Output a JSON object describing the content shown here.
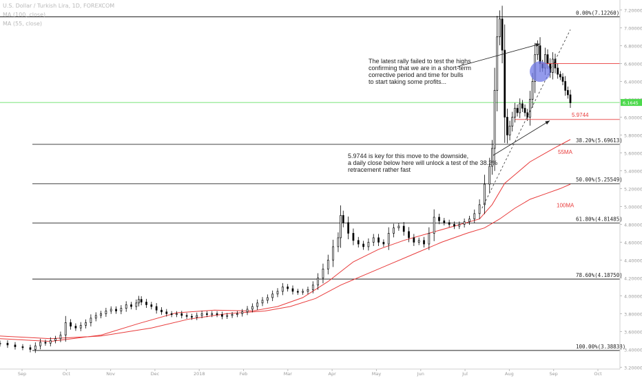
{
  "header": {
    "symbol": "U.S. Dollar / Turkish Lira, 1D, FOREXCOM",
    "indicator_1": "MA (100, close)",
    "indicator_2": "MA (55, close)"
  },
  "annotations": {
    "top_note": [
      "The latest rally failed to test the highs",
      "confirming that we are in a short-term",
      "corrective period and time for bulls",
      "to start taking some profits..."
    ],
    "bottom_note": [
      "5.9744 is key for this move to the downside,",
      "a daily close below here will unlock a test of the 38.2%",
      "retracement rather fast"
    ]
  },
  "colors": {
    "candle": "#000000",
    "ma": "#e83a3a",
    "fib_line": "#000000",
    "current_price": "#4cd94c",
    "circle": "#6f78e6"
  },
  "chart_data": {
    "type": "candlestick",
    "x_ticks": [
      "Sep",
      "Oct",
      "Nov",
      "Dec",
      "2018",
      "Feb",
      "Mar",
      "Apr",
      "May",
      "Jun",
      "Jul",
      "Aug",
      "Sep",
      "Oct"
    ],
    "y_ticks": [
      "3.20000",
      "3.40000",
      "3.60000",
      "3.80000",
      "4.00000",
      "4.20000",
      "4.40000",
      "4.60000",
      "4.80000",
      "5.00000",
      "5.20000",
      "5.40000",
      "5.60000",
      "5.80000",
      "6.00000",
      "6.20000",
      "6.40000",
      "6.60000",
      "6.80000",
      "7.00000",
      "7.20000"
    ],
    "ylim": [
      3.18,
      7.25
    ],
    "current_price": "6.1645",
    "fib_levels": [
      {
        "label": "0.00%(7.12260)",
        "value": 7.1226
      },
      {
        "label": "38.20%(5.69613)",
        "value": 5.69613
      },
      {
        "label": "50.00%(5.25549)",
        "value": 5.25549
      },
      {
        "label": "61.80%(4.81485)",
        "value": 4.81485
      },
      {
        "label": "78.60%(4.18750)",
        "value": 4.1875
      },
      {
        "label": "100.00%(3.38838)",
        "value": 3.38838
      }
    ],
    "key_level": {
      "label": "5.9744",
      "value": 5.9744
    },
    "resistance_level": 6.6,
    "ma_labels": {
      "ma55": "55MA",
      "ma100": "100MA"
    },
    "series": [
      {
        "name": "USD/TRY",
        "points": [
          [
            0,
            3.47
          ],
          [
            3,
            3.45
          ],
          [
            6,
            3.43
          ],
          [
            9,
            3.42
          ],
          [
            12,
            3.4
          ],
          [
            14,
            3.44
          ],
          [
            16,
            3.48
          ],
          [
            18,
            3.47
          ],
          [
            20,
            3.5
          ],
          [
            22,
            3.52
          ],
          [
            24,
            3.56
          ],
          [
            26,
            3.7
          ],
          [
            28,
            3.66
          ],
          [
            30,
            3.64
          ],
          [
            32,
            3.67
          ],
          [
            34,
            3.7
          ],
          [
            36,
            3.75
          ],
          [
            38,
            3.78
          ],
          [
            40,
            3.8
          ],
          [
            42,
            3.83
          ],
          [
            44,
            3.85
          ],
          [
            46,
            3.83
          ],
          [
            48,
            3.86
          ],
          [
            50,
            3.9
          ],
          [
            52,
            3.88
          ],
          [
            54,
            3.92
          ],
          [
            55,
            3.96
          ],
          [
            56,
            3.93
          ],
          [
            58,
            3.9
          ],
          [
            60,
            3.88
          ],
          [
            62,
            3.84
          ],
          [
            64,
            3.82
          ],
          [
            66,
            3.8
          ],
          [
            68,
            3.79
          ],
          [
            70,
            3.8
          ],
          [
            72,
            3.78
          ],
          [
            74,
            3.77
          ],
          [
            76,
            3.76
          ],
          [
            78,
            3.78
          ],
          [
            80,
            3.8
          ],
          [
            82,
            3.79
          ],
          [
            84,
            3.8
          ],
          [
            86,
            3.79
          ],
          [
            88,
            3.77
          ],
          [
            90,
            3.78
          ],
          [
            92,
            3.79
          ],
          [
            94,
            3.8
          ],
          [
            96,
            3.82
          ],
          [
            98,
            3.85
          ],
          [
            100,
            3.88
          ],
          [
            102,
            3.92
          ],
          [
            104,
            3.95
          ],
          [
            106,
            3.98
          ],
          [
            108,
            4.02
          ],
          [
            110,
            4.05
          ],
          [
            112,
            4.1
          ],
          [
            114,
            4.08
          ],
          [
            116,
            4.05
          ],
          [
            118,
            4.04
          ],
          [
            120,
            4.05
          ],
          [
            122,
            4.07
          ],
          [
            124,
            4.12
          ],
          [
            126,
            4.2
          ],
          [
            128,
            4.3
          ],
          [
            130,
            4.4
          ],
          [
            132,
            4.55
          ],
          [
            134,
            4.65
          ],
          [
            135,
            4.9
          ],
          [
            136,
            4.82
          ],
          [
            138,
            4.7
          ],
          [
            140,
            4.62
          ],
          [
            142,
            4.58
          ],
          [
            144,
            4.55
          ],
          [
            146,
            4.6
          ],
          [
            148,
            4.65
          ],
          [
            150,
            4.6
          ],
          [
            152,
            4.58
          ],
          [
            154,
            4.7
          ],
          [
            156,
            4.76
          ],
          [
            158,
            4.78
          ],
          [
            160,
            4.72
          ],
          [
            162,
            4.65
          ],
          [
            164,
            4.6
          ],
          [
            166,
            4.62
          ],
          [
            168,
            4.58
          ],
          [
            170,
            4.7
          ],
          [
            172,
            4.88
          ],
          [
            174,
            4.84
          ],
          [
            176,
            4.82
          ],
          [
            178,
            4.8
          ],
          [
            180,
            4.78
          ],
          [
            182,
            4.8
          ],
          [
            184,
            4.83
          ],
          [
            186,
            4.86
          ],
          [
            188,
            4.92
          ],
          [
            190,
            5.02
          ],
          [
            192,
            5.25
          ],
          [
            194,
            5.45
          ],
          [
            195,
            5.65
          ],
          [
            196,
            6.3
          ],
          [
            197,
            6.9
          ],
          [
            198,
            7.1
          ],
          [
            199,
            6.75
          ],
          [
            200,
            6.0
          ],
          [
            201,
            5.8
          ],
          [
            202,
            5.9
          ],
          [
            203,
            6.0
          ],
          [
            204,
            6.1
          ],
          [
            205,
            6.05
          ],
          [
            206,
            6.15
          ],
          [
            207,
            6.1
          ],
          [
            208,
            6.05
          ],
          [
            209,
            6.0
          ],
          [
            210,
            6.2
          ],
          [
            211,
            6.4
          ],
          [
            212,
            6.7
          ],
          [
            213,
            6.8
          ],
          [
            214,
            6.6
          ],
          [
            215,
            6.55
          ],
          [
            216,
            6.7
          ],
          [
            217,
            6.6
          ],
          [
            218,
            6.5
          ],
          [
            219,
            6.65
          ],
          [
            220,
            6.55
          ],
          [
            221,
            6.48
          ],
          [
            222,
            6.45
          ],
          [
            223,
            6.4
          ],
          [
            224,
            6.3
          ],
          [
            225,
            6.25
          ],
          [
            226,
            6.16
          ]
        ]
      },
      {
        "name": "55MA",
        "points": [
          [
            0,
            3.52
          ],
          [
            20,
            3.49
          ],
          [
            40,
            3.56
          ],
          [
            55,
            3.69
          ],
          [
            70,
            3.81
          ],
          [
            85,
            3.84
          ],
          [
            100,
            3.83
          ],
          [
            110,
            3.88
          ],
          [
            120,
            3.98
          ],
          [
            130,
            4.16
          ],
          [
            140,
            4.38
          ],
          [
            150,
            4.52
          ],
          [
            160,
            4.62
          ],
          [
            170,
            4.7
          ],
          [
            180,
            4.78
          ],
          [
            190,
            4.86
          ],
          [
            195,
            5.02
          ],
          [
            200,
            5.26
          ],
          [
            205,
            5.38
          ],
          [
            210,
            5.5
          ],
          [
            215,
            5.58
          ],
          [
            220,
            5.66
          ],
          [
            226,
            5.75
          ]
        ]
      },
      {
        "name": "100MA",
        "points": [
          [
            0,
            3.55
          ],
          [
            20,
            3.52
          ],
          [
            40,
            3.55
          ],
          [
            60,
            3.64
          ],
          [
            75,
            3.74
          ],
          [
            90,
            3.8
          ],
          [
            105,
            3.83
          ],
          [
            115,
            3.88
          ],
          [
            125,
            3.97
          ],
          [
            135,
            4.12
          ],
          [
            145,
            4.24
          ],
          [
            155,
            4.36
          ],
          [
            165,
            4.48
          ],
          [
            175,
            4.6
          ],
          [
            185,
            4.7
          ],
          [
            192,
            4.76
          ],
          [
            198,
            4.86
          ],
          [
            204,
            4.98
          ],
          [
            210,
            5.08
          ],
          [
            216,
            5.14
          ],
          [
            222,
            5.2
          ],
          [
            226,
            5.25
          ]
        ]
      }
    ]
  }
}
